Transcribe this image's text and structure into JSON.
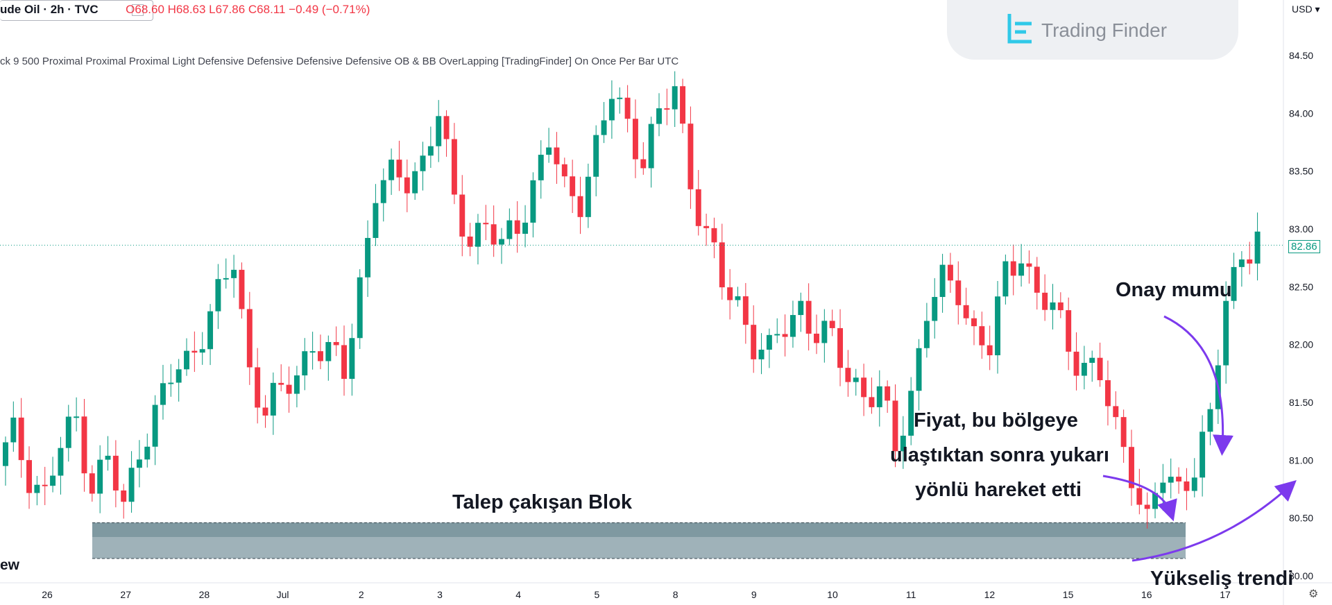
{
  "header": {
    "symbol": "ude Oil · 2h · TVC",
    "ohlc": "O68.60 H68.63 L67.86 C68.11 −0.49 (−0.71%)",
    "indicator": "ck 9 500 Proximal Proximal Proximal Light Defensive Defensive Defensive Defensive OB & BB OverLapping [TradingFinder] On Once Per Bar UTC",
    "currency": "USD",
    "logo": "Trading Finder",
    "tv_partial": "ew"
  },
  "colors": {
    "up": "#089981",
    "down": "#f23645",
    "zone": "#5f7f8a",
    "arrow": "#7c3aed"
  },
  "annotations": {
    "zone_label": "Talep çakışan Blok",
    "move_label_1": "Fiyat, bu bölgeye",
    "move_label_2": "ulaştıktan sonra yukarı",
    "move_label_3": "yönlü hareket etti",
    "confirm_label": "Onay mumu",
    "trend_label": "Yükseliş trendi"
  },
  "chart_data": {
    "type": "candlestick",
    "y_ticks": [
      "84.50",
      "84.00",
      "83.50",
      "83.00",
      "82.50",
      "82.00",
      "81.50",
      "81.00",
      "80.50",
      "80.00"
    ],
    "ylim": [
      80.0,
      84.5
    ],
    "x_ticks": [
      "26",
      "27",
      "28",
      "Jul",
      "2",
      "3",
      "4",
      "5",
      "8",
      "9",
      "10",
      "11",
      "12",
      "15",
      "16",
      "17"
    ],
    "last_price": "82.86",
    "zone": {
      "low": 80.15,
      "high": 80.46
    },
    "close_path": [
      80.95,
      81.2,
      80.9,
      80.7,
      81.1,
      81.35,
      80.8,
      81.0,
      80.55,
      81.15,
      81.4,
      81.7,
      81.85,
      82.15,
      82.4,
      82.7,
      81.8,
      81.45,
      81.55,
      81.75,
      82.05,
      81.9,
      81.75,
      82.55,
      83.35,
      83.4,
      83.45,
      83.6,
      84.0,
      83.2,
      82.95,
      83.05,
      82.8,
      83.05,
      83.4,
      83.75,
      83.3,
      83.3,
      83.7,
      84.15,
      83.9,
      83.65,
      83.95,
      84.2,
      83.45,
      82.95,
      82.5,
      82.35,
      82.05,
      81.9,
      82.15,
      82.35,
      82.1,
      82.0,
      81.75,
      81.6,
      81.55,
      81.1,
      81.6,
      82.3,
      82.5,
      82.5,
      82.1,
      81.95,
      82.6,
      82.85,
      82.4,
      82.3,
      82.0,
      81.85,
      81.7,
      81.25,
      80.95,
      80.45,
      80.85,
      80.75,
      81.0,
      81.3,
      82.4,
      82.8,
      82.95
    ]
  }
}
